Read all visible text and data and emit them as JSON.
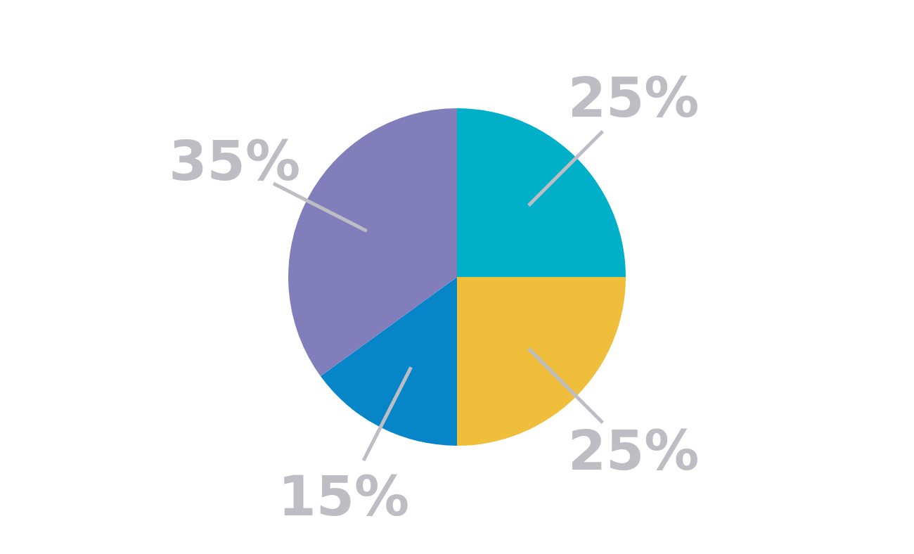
{
  "chart_data": {
    "type": "pie",
    "categories": [
      null,
      null,
      null,
      null
    ],
    "values": [
      25,
      25,
      15,
      35
    ],
    "colors": [
      "#00b0c9",
      "#efbe3a",
      "#0686c8",
      "#817ebb"
    ],
    "value_labels": [
      "25%",
      "25%",
      "15%",
      "35%"
    ]
  }
}
